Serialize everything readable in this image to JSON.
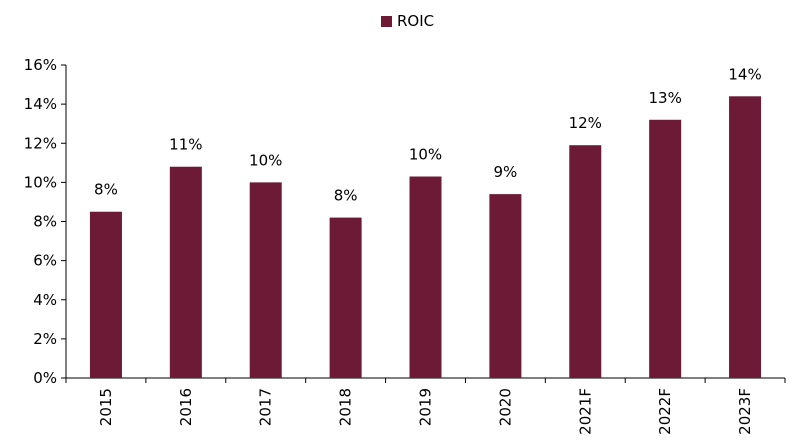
{
  "chart_data": {
    "type": "bar",
    "categories": [
      "2015",
      "2016",
      "2017",
      "2018",
      "2019",
      "2020",
      "2021F",
      "2022F",
      "2023F"
    ],
    "series": [
      {
        "name": "ROIC",
        "values": [
          8.5,
          10.8,
          10.0,
          8.2,
          10.3,
          9.4,
          11.9,
          13.2,
          14.4
        ],
        "data_labels": [
          "8%",
          "11%",
          "10%",
          "8%",
          "10%",
          "9%",
          "12%",
          "13%",
          "14%"
        ],
        "color": "#6d1a36"
      }
    ],
    "y_ticks": [
      0,
      2,
      4,
      6,
      8,
      10,
      12,
      14,
      16
    ],
    "y_tick_labels": [
      "0%",
      "2%",
      "4%",
      "6%",
      "8%",
      "10%",
      "12%",
      "14%",
      "16%"
    ],
    "ylim": [
      0,
      16
    ],
    "legend_position": "top-center",
    "grid": false
  }
}
